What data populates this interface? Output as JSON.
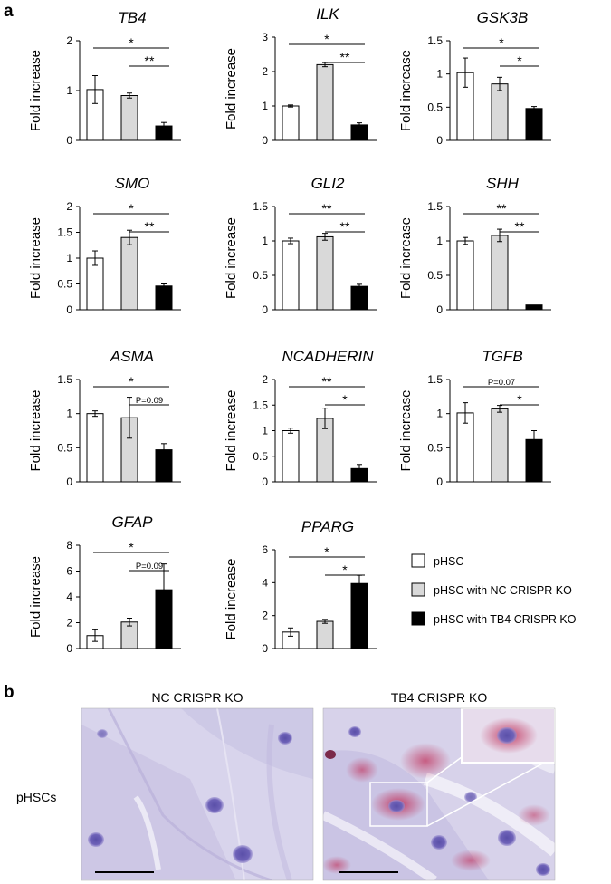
{
  "panel_a_label": "a",
  "panel_b_label": "b",
  "ylabel": "Fold increase",
  "legend": [
    {
      "label": "pHSC",
      "color": "#ffffff"
    },
    {
      "label": "pHSC with NC CRISPR KO",
      "color": "#d9d9d9"
    },
    {
      "label": "pHSC with TB4 CRISPR KO",
      "color": "#000000"
    }
  ],
  "chart_data": [
    {
      "type": "bar",
      "title": "TB4",
      "ylabel": "Fold increase",
      "ylim": [
        0,
        2
      ],
      "yticks": [
        "0",
        "1",
        "2"
      ],
      "categories": [
        "pHSC",
        "pHSC with NC CRISPR KO",
        "pHSC with TB4 CRISPR KO"
      ],
      "values": [
        1.02,
        0.9,
        0.29
      ],
      "errors": [
        0.28,
        0.05,
        0.07
      ],
      "significance": [
        {
          "from": 0,
          "to": 2,
          "label": "*"
        },
        {
          "from": 1,
          "to": 2,
          "label": "**"
        }
      ]
    },
    {
      "type": "bar",
      "title": "ILK",
      "ylabel": "Fold increase",
      "ylim": [
        0,
        3
      ],
      "yticks": [
        "0",
        "1",
        "2",
        "3"
      ],
      "categories": [
        "pHSC",
        "pHSC with NC CRISPR KO",
        "pHSC with TB4 CRISPR KO"
      ],
      "values": [
        1.0,
        2.2,
        0.45
      ],
      "errors": [
        0.03,
        0.06,
        0.06
      ],
      "significance": [
        {
          "from": 0,
          "to": 2,
          "label": "*"
        },
        {
          "from": 1,
          "to": 2,
          "label": "**"
        }
      ]
    },
    {
      "type": "bar",
      "title": "GSK3B",
      "ylabel": "Fold increase",
      "ylim": [
        0,
        1.5
      ],
      "yticks": [
        "0",
        "0.5",
        "1",
        "1.5"
      ],
      "categories": [
        "pHSC",
        "pHSC with NC CRISPR KO",
        "pHSC with TB4 CRISPR KO"
      ],
      "values": [
        1.02,
        0.85,
        0.48
      ],
      "errors": [
        0.22,
        0.1,
        0.03
      ],
      "significance": [
        {
          "from": 0,
          "to": 2,
          "label": "*"
        },
        {
          "from": 1,
          "to": 2,
          "label": "*"
        }
      ]
    },
    {
      "type": "bar",
      "title": "SMO",
      "ylabel": "Fold increase",
      "ylim": [
        0,
        2
      ],
      "yticks": [
        "0",
        "0.5",
        "1",
        "1.5",
        "2"
      ],
      "categories": [
        "pHSC",
        "pHSC with NC CRISPR KO",
        "pHSC with TB4 CRISPR KO"
      ],
      "values": [
        1.0,
        1.4,
        0.46
      ],
      "errors": [
        0.14,
        0.14,
        0.04
      ],
      "significance": [
        {
          "from": 0,
          "to": 2,
          "label": "*"
        },
        {
          "from": 1,
          "to": 2,
          "label": "**"
        }
      ]
    },
    {
      "type": "bar",
      "title": "GLI2",
      "ylabel": "Fold increase",
      "ylim": [
        0,
        1.5
      ],
      "yticks": [
        "0",
        "0.5",
        "1",
        "1.5"
      ],
      "categories": [
        "pHSC",
        "pHSC with NC CRISPR KO",
        "pHSC with TB4 CRISPR KO"
      ],
      "values": [
        1.0,
        1.06,
        0.34
      ],
      "errors": [
        0.04,
        0.05,
        0.03
      ],
      "significance": [
        {
          "from": 0,
          "to": 2,
          "label": "**"
        },
        {
          "from": 1,
          "to": 2,
          "label": "**"
        }
      ]
    },
    {
      "type": "bar",
      "title": "SHH",
      "ylabel": "Fold increase",
      "ylim": [
        0,
        1.5
      ],
      "yticks": [
        "0",
        "0.5",
        "1",
        "1.5"
      ],
      "categories": [
        "pHSC",
        "pHSC with NC CRISPR KO",
        "pHSC with TB4 CRISPR KO"
      ],
      "values": [
        1.0,
        1.08,
        0.07
      ],
      "errors": [
        0.05,
        0.09,
        0.0
      ],
      "significance": [
        {
          "from": 0,
          "to": 2,
          "label": "**"
        },
        {
          "from": 1,
          "to": 2,
          "label": "**"
        }
      ]
    },
    {
      "type": "bar",
      "title": "ASMA",
      "ylabel": "Fold increase",
      "ylim": [
        0,
        1.5
      ],
      "yticks": [
        "0",
        "0.5",
        "1",
        "1.5"
      ],
      "categories": [
        "pHSC",
        "pHSC with NC CRISPR KO",
        "pHSC with TB4 CRISPR KO"
      ],
      "values": [
        1.0,
        0.94,
        0.47
      ],
      "errors": [
        0.04,
        0.3,
        0.09
      ],
      "significance": [
        {
          "from": 0,
          "to": 2,
          "label": "*"
        },
        {
          "from": 1,
          "to": 2,
          "label": "P=0.09"
        }
      ]
    },
    {
      "type": "bar",
      "title": "NCADHERIN",
      "ylabel": "Fold increase",
      "ylim": [
        0,
        2
      ],
      "yticks": [
        "0",
        "0.5",
        "1",
        "1.5",
        "2"
      ],
      "categories": [
        "pHSC",
        "pHSC with NC CRISPR KO",
        "pHSC with TB4 CRISPR KO"
      ],
      "values": [
        1.0,
        1.24,
        0.26
      ],
      "errors": [
        0.05,
        0.2,
        0.08
      ],
      "significance": [
        {
          "from": 0,
          "to": 2,
          "label": "**"
        },
        {
          "from": 1,
          "to": 2,
          "label": "*"
        }
      ]
    },
    {
      "type": "bar",
      "title": "TGFB",
      "ylabel": "Fold increase",
      "ylim": [
        0,
        1.5
      ],
      "yticks": [
        "0",
        "0.5",
        "1",
        "1.5"
      ],
      "categories": [
        "pHSC",
        "pHSC with NC CRISPR KO",
        "pHSC with TB4 CRISPR KO"
      ],
      "values": [
        1.01,
        1.07,
        0.62
      ],
      "errors": [
        0.15,
        0.05,
        0.13
      ],
      "significance": [
        {
          "from": 0,
          "to": 2,
          "label": "P=0.07"
        },
        {
          "from": 1,
          "to": 2,
          "label": "*"
        }
      ]
    },
    {
      "type": "bar",
      "title": "GFAP",
      "ylabel": "Fold increase",
      "ylim": [
        0,
        8
      ],
      "yticks": [
        "0",
        "2",
        "4",
        "6",
        "8"
      ],
      "categories": [
        "pHSC",
        "pHSC with NC CRISPR KO",
        "pHSC with TB4 CRISPR KO"
      ],
      "values": [
        1.0,
        2.05,
        4.55
      ],
      "errors": [
        0.45,
        0.3,
        2.0
      ],
      "significance": [
        {
          "from": 0,
          "to": 2,
          "label": "*"
        },
        {
          "from": 1,
          "to": 2,
          "label": "P=0.09"
        }
      ]
    },
    {
      "type": "bar",
      "title": "PPARG",
      "ylabel": "Fold increase",
      "ylim": [
        0,
        6
      ],
      "yticks": [
        "0",
        "2",
        "4",
        "6"
      ],
      "categories": [
        "pHSC",
        "pHSC with NC CRISPR KO",
        "pHSC with TB4 CRISPR KO"
      ],
      "values": [
        1.0,
        1.65,
        3.95
      ],
      "errors": [
        0.25,
        0.12,
        0.5
      ],
      "significance": [
        {
          "from": 0,
          "to": 2,
          "label": "*"
        },
        {
          "from": 1,
          "to": 2,
          "label": "*"
        }
      ]
    }
  ],
  "microscopy": {
    "row_label": "pHSCs",
    "left_title": "NC CRISPR KO",
    "right_title": "TB4 CRISPR KO"
  }
}
